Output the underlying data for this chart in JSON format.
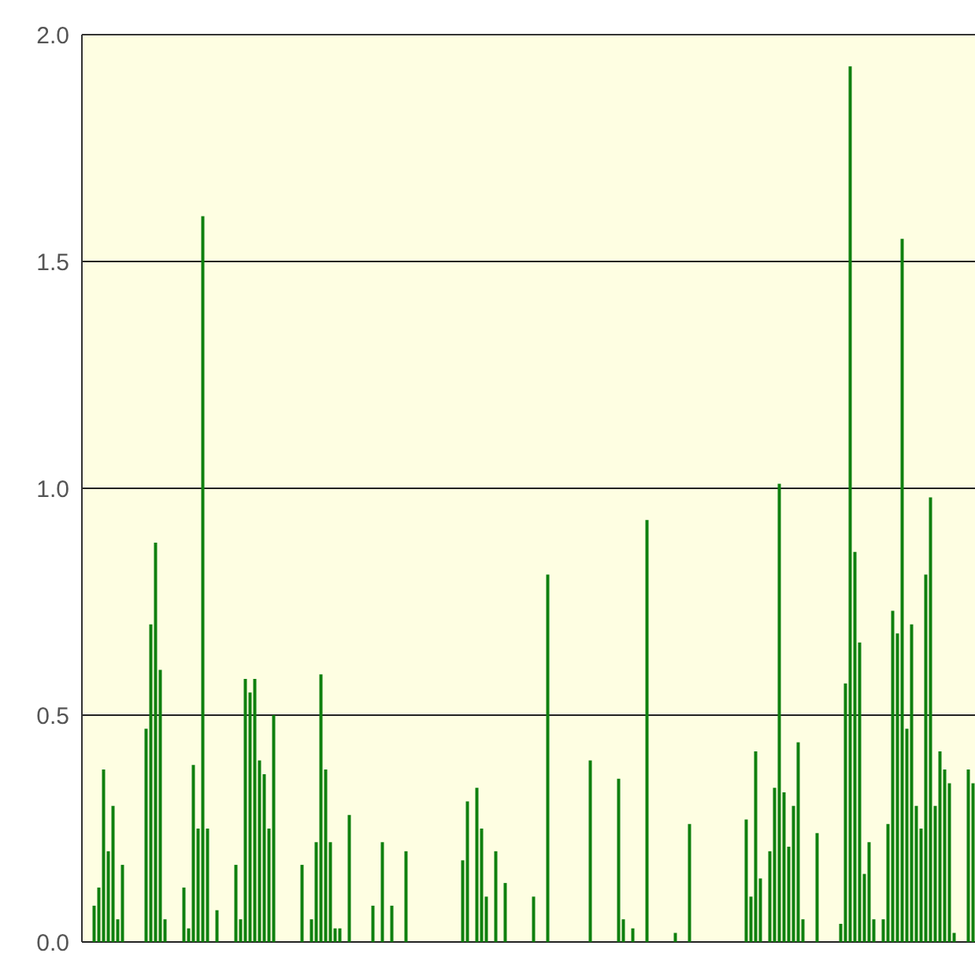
{
  "chart_data": {
    "type": "bar",
    "categories": [
      null,
      null,
      null,
      null,
      null,
      null,
      null,
      null,
      null,
      null,
      null,
      null,
      null,
      null,
      null,
      null,
      null,
      null,
      null,
      null,
      null,
      null,
      null,
      null,
      null,
      null,
      null,
      null,
      null,
      null,
      null,
      null,
      null,
      null,
      null,
      null,
      null,
      null,
      null,
      null,
      null,
      null,
      null,
      null,
      null,
      null,
      null,
      null,
      null,
      null,
      null,
      null,
      null,
      null,
      null,
      null,
      null,
      null,
      null,
      null,
      null,
      null,
      null,
      null,
      null,
      null,
      null,
      null,
      null,
      null,
      null,
      null,
      null,
      null,
      null,
      null,
      null,
      null,
      null,
      null,
      null,
      null,
      null,
      null,
      null,
      null,
      null,
      null,
      null,
      null,
      null,
      null,
      null,
      null,
      null,
      null,
      null,
      null,
      null,
      null,
      null,
      null,
      null,
      null,
      null,
      null,
      null,
      null,
      null,
      null,
      null,
      null,
      null,
      null,
      null,
      null,
      null,
      null,
      null,
      null,
      null,
      null,
      null,
      null,
      null,
      null,
      null,
      null,
      null,
      null,
      null,
      null,
      null,
      null,
      null,
      null,
      null,
      null,
      null,
      null,
      null,
      null,
      null,
      null,
      null,
      null,
      null,
      null,
      null,
      null,
      null,
      null,
      null,
      null,
      null,
      null,
      null,
      null,
      null,
      null,
      null,
      null,
      null,
      null,
      null,
      null,
      null,
      null,
      null,
      null,
      null,
      null,
      null,
      null,
      null,
      null,
      null,
      null,
      null,
      null,
      null,
      null,
      null,
      null,
      null,
      null,
      null,
      null,
      null
    ],
    "values": [
      0,
      0,
      0.08,
      0.12,
      0.38,
      0.2,
      0.3,
      0.05,
      0.17,
      0,
      0,
      0,
      0,
      0.47,
      0.7,
      0.88,
      0.6,
      0.05,
      0,
      0,
      0,
      0.12,
      0.03,
      0.39,
      0.25,
      1.6,
      0.25,
      0,
      0.07,
      0,
      0,
      0,
      0.17,
      0.05,
      0.58,
      0.55,
      0.58,
      0.4,
      0.37,
      0.25,
      0.5,
      0,
      0,
      0,
      0,
      0,
      0.17,
      0,
      0.05,
      0.22,
      0.59,
      0.38,
      0.22,
      0.03,
      0.03,
      0,
      0.28,
      0,
      0,
      0,
      0,
      0.08,
      0,
      0.22,
      0,
      0.08,
      0,
      0,
      0.2,
      0,
      0,
      0,
      0,
      0,
      0,
      0,
      0,
      0,
      0,
      0,
      0.18,
      0.31,
      0,
      0.34,
      0.25,
      0.1,
      0,
      0.2,
      0,
      0.13,
      0,
      0,
      0,
      0,
      0,
      0.1,
      0,
      0,
      0.81,
      0,
      0,
      0,
      0,
      0,
      0,
      0,
      0,
      0.4,
      0,
      0,
      0,
      0,
      0,
      0.36,
      0.05,
      0,
      0.03,
      0,
      0,
      0.93,
      0,
      0,
      0,
      0,
      0,
      0.02,
      0,
      0,
      0.26,
      0,
      0,
      0,
      0,
      0,
      0,
      0,
      0,
      0,
      0,
      0,
      0.27,
      0.1,
      0.42,
      0.14,
      0,
      0.2,
      0.34,
      1.01,
      0.33,
      0.21,
      0.3,
      0.44,
      0.05,
      0,
      0,
      0.24,
      0,
      0,
      0,
      0,
      0.04,
      0.57,
      1.93,
      0.86,
      0.66,
      0.15,
      0.22,
      0.05,
      0,
      0.05,
      0.26,
      0.73,
      0.68,
      1.55,
      0.47,
      0.7,
      0.3,
      0.25,
      0.81,
      0.98,
      0.3,
      0.42,
      0.38,
      0.35,
      0.02,
      0,
      0,
      0.38,
      0.35
    ],
    "color": "#0f800f",
    "ylim": [
      0,
      2
    ],
    "yticks": [
      {
        "value": 0,
        "label": "0.0"
      },
      {
        "value": 0.5,
        "label": "0.5"
      },
      {
        "value": 1,
        "label": "1.0"
      },
      {
        "value": 1.5,
        "label": "1.5"
      },
      {
        "value": 2,
        "label": "2.0"
      }
    ],
    "grid": "y",
    "tick_labels": "y"
  }
}
